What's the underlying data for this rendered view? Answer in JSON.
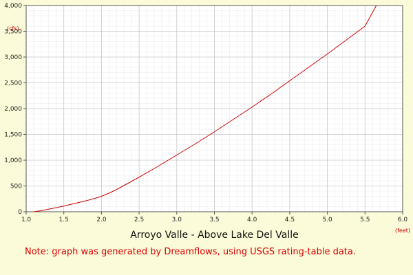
{
  "chart_data": {
    "type": "line",
    "title": "Arroyo Valle - Above Lake Del Valle",
    "note": "Note: graph was generated by Dreamflows, using USGS rating-table data.",
    "xlabel": "(feet)",
    "ylabel": "(cfs)",
    "xlim": [
      1.0,
      6.0
    ],
    "ylim": [
      0,
      4000
    ],
    "x_ticks": [
      "1.0",
      "1.5",
      "2.0",
      "2.5",
      "3.0",
      "3.5",
      "4.0",
      "4.5",
      "5.0",
      "5.5",
      "6.0"
    ],
    "y_ticks": [
      "0",
      "500",
      "1,000",
      "1,500",
      "2,000",
      "2,500",
      "3,000",
      "3,500",
      "4,000"
    ],
    "grid": true,
    "series": [
      {
        "x": [
          1.1,
          1.2,
          1.3,
          1.4,
          1.5,
          1.6,
          1.7,
          1.8,
          1.9,
          2.0,
          2.1,
          2.2,
          2.3,
          2.4,
          2.5,
          2.75,
          3.0,
          3.25,
          3.5,
          3.75,
          4.0,
          4.25,
          4.5,
          4.75,
          5.0,
          5.25,
          5.5,
          5.65
        ],
        "y": [
          0,
          20,
          50,
          80,
          110,
          145,
          180,
          215,
          255,
          300,
          360,
          430,
          510,
          590,
          670,
          880,
          1100,
          1320,
          1550,
          1790,
          2030,
          2280,
          2540,
          2800,
          3060,
          3330,
          3600,
          4000
        ]
      }
    ],
    "colors": {
      "background": "#fbfbd9",
      "plot_background": "#ffffff",
      "line": "#cc0000",
      "grid_major": "#c8c8c8",
      "grid_minor": "#ebebeb",
      "axis": "#555555",
      "unit_text": "#cc0000",
      "note_text": "#dd0000"
    }
  }
}
